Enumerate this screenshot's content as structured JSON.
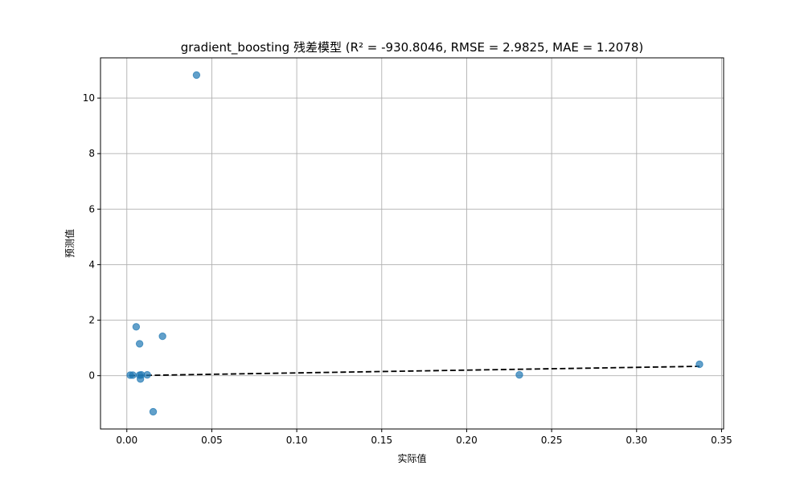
{
  "chart_data": {
    "type": "scatter",
    "title": "gradient_boosting 残差模型 (R² = -930.8046, RMSE = 2.9825, MAE = 1.2078)",
    "xlabel": "实际值",
    "ylabel": "预测值",
    "xlim": [
      -0.0155,
      0.3512
    ],
    "ylim": [
      -1.92,
      11.45
    ],
    "x_ticks": [
      0.0,
      0.05,
      0.1,
      0.15,
      0.2,
      0.25,
      0.3,
      0.35
    ],
    "x_tick_labels": [
      "0.00",
      "0.05",
      "0.10",
      "0.15",
      "0.20",
      "0.25",
      "0.30",
      "0.35"
    ],
    "y_ticks": [
      0,
      2,
      4,
      6,
      8,
      10
    ],
    "y_tick_labels": [
      "0",
      "2",
      "4",
      "6",
      "8",
      "10"
    ],
    "grid": true,
    "points": [
      {
        "x": 0.041,
        "y": 10.83
      },
      {
        "x": 0.021,
        "y": 1.42
      },
      {
        "x": 0.0055,
        "y": 1.76
      },
      {
        "x": 0.0075,
        "y": 1.15
      },
      {
        "x": 0.002,
        "y": 0.02
      },
      {
        "x": 0.0035,
        "y": 0.02
      },
      {
        "x": 0.0075,
        "y": 0.02
      },
      {
        "x": 0.0085,
        "y": 0.03
      },
      {
        "x": 0.012,
        "y": 0.03
      },
      {
        "x": 0.008,
        "y": -0.12
      },
      {
        "x": 0.0155,
        "y": -1.3
      },
      {
        "x": 0.231,
        "y": 0.03
      },
      {
        "x": 0.337,
        "y": 0.41
      }
    ],
    "reference_line": {
      "x": [
        0.0015,
        0.337
      ],
      "y": [
        0.0015,
        0.337
      ]
    },
    "colors": {
      "points": "#1f77b4",
      "reference_line": "#000000"
    },
    "point_alpha": 0.7
  }
}
